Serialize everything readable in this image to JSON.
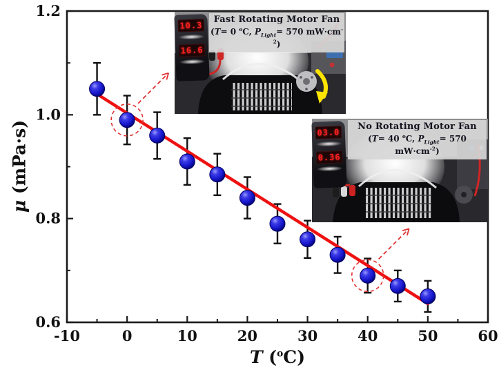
{
  "figure": {
    "background": "#ffffff",
    "frame_color": "#1a1a1a"
  },
  "axes": {
    "x_label": {
      "symbol": "T",
      "open": " (",
      "deg": "o",
      "rest": "C)"
    },
    "y_label": {
      "symbol": "μ",
      "rest": " (mPa·s)"
    },
    "x_tick_labels": [
      "-10",
      "0",
      "10",
      "20",
      "30",
      "40",
      "50",
      "60"
    ],
    "y_tick_labels": [
      "1.2",
      "1.0",
      "0.8",
      "0.6"
    ]
  },
  "insets": {
    "top": {
      "title": "Fast Rotating Motor Fan",
      "cond": {
        "open": "(",
        "sym": "T",
        "eq": "= 0 ",
        "deg": "o",
        "unit": "C, ",
        "psym": "P",
        "psub": "Light",
        "peq": "= 570 mW·cm",
        "psup": "-2",
        "close": ")"
      },
      "meter_top": "10.3",
      "meter_bottom": "16.6"
    },
    "bottom": {
      "title": "No Rotating Motor Fan",
      "cond": {
        "open": "(",
        "sym": "T",
        "eq": "= 40 ",
        "deg": "o",
        "unit": "C, ",
        "psym": "P",
        "psub": "Light",
        "peq": "= 570 mW·cm",
        "psup": "-2",
        "close": ")"
      },
      "meter_top": "03.0",
      "meter_bottom": "0.36"
    }
  },
  "chart_data": {
    "type": "scatter",
    "title": "",
    "xlabel": "T (°C)",
    "ylabel": "μ (mPa·s)",
    "xlim": [
      -10,
      60
    ],
    "ylim": [
      0.6,
      1.2
    ],
    "xticks_major": [
      -10,
      0,
      10,
      20,
      30,
      40,
      50,
      60
    ],
    "xticks_minor": [
      -5,
      5,
      15,
      25,
      35,
      45,
      55
    ],
    "yticks_major": [
      1.2,
      1.0,
      0.8,
      0.6
    ],
    "yticks_minor": [
      0.7,
      0.9,
      1.1
    ],
    "grid": false,
    "legend": "none",
    "series": [
      {
        "name": "viscosity measurements",
        "type": "scatter",
        "marker": "sphere",
        "color": "#1f1fd0",
        "x": [
          -5,
          0,
          5,
          10,
          15,
          20,
          25,
          30,
          35,
          40,
          45,
          50
        ],
        "y": [
          1.05,
          0.99,
          0.96,
          0.91,
          0.885,
          0.84,
          0.79,
          0.76,
          0.73,
          0.69,
          0.67,
          0.65
        ],
        "yerr": [
          0.05,
          0.047,
          0.045,
          0.045,
          0.04,
          0.04,
          0.038,
          0.036,
          0.035,
          0.033,
          0.03,
          0.03
        ]
      },
      {
        "name": "linear fit",
        "type": "line",
        "color": "#ee1111",
        "x": [
          -5,
          50
        ],
        "y": [
          1.04,
          0.636
        ]
      }
    ],
    "annotations": {
      "circled_points_T": [
        0,
        40
      ],
      "circle_color": "#e03131",
      "note": "dashed circles around T=0 and T=40 points with dashed arrows pointing to the corresponding inset photos"
    }
  }
}
